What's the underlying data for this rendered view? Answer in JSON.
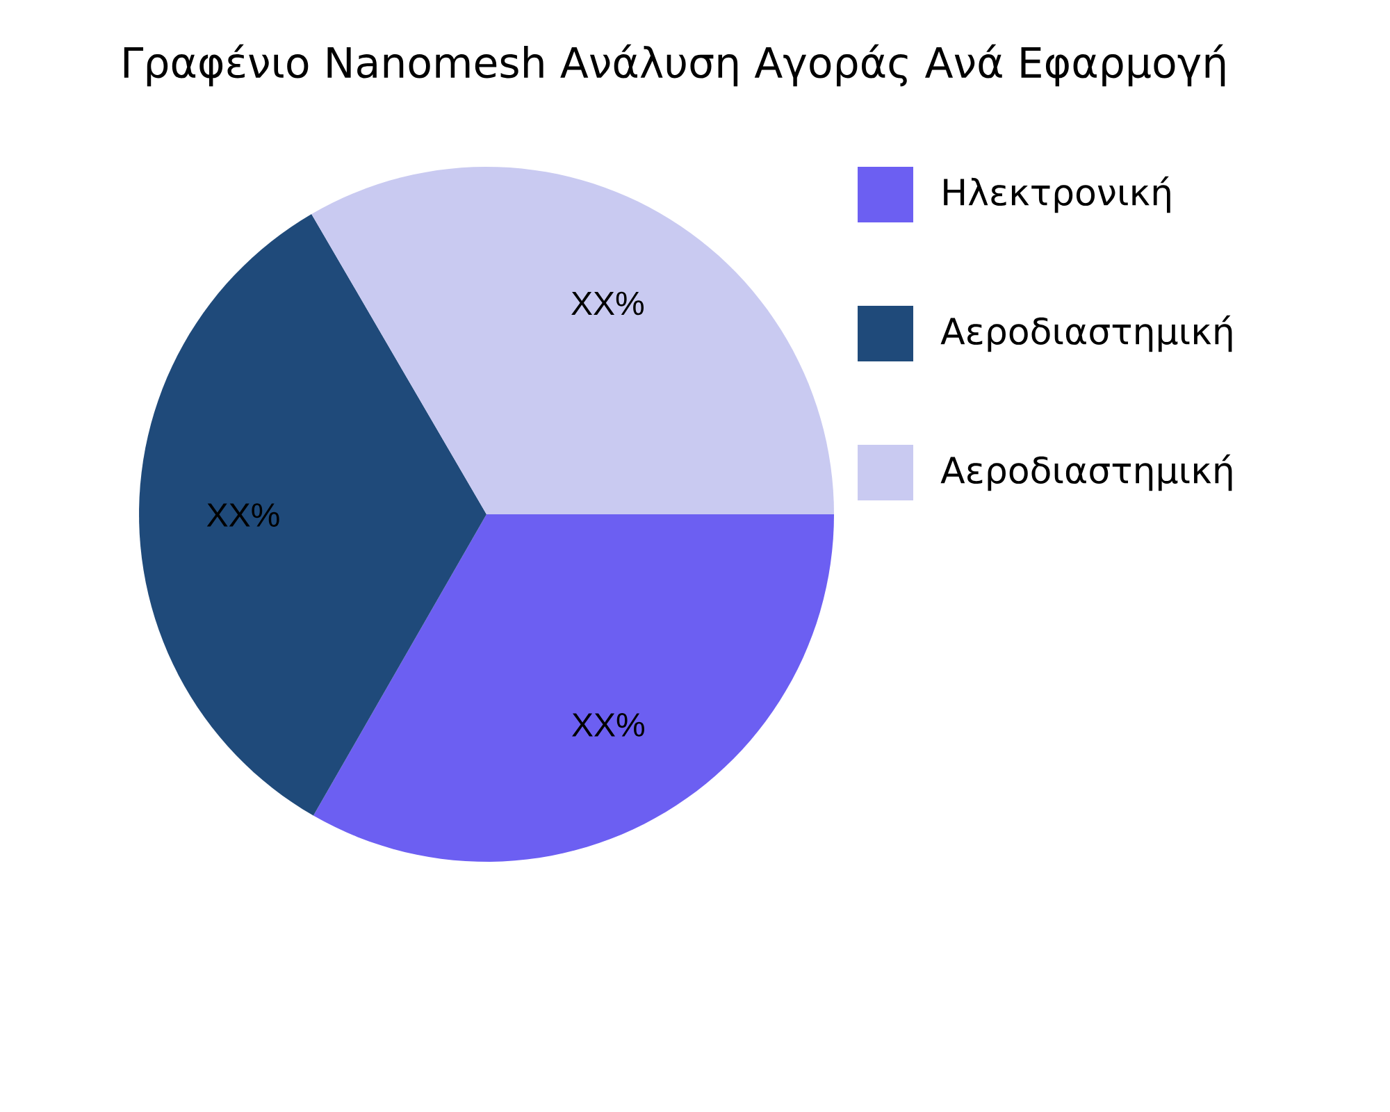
{
  "chart_data": {
    "type": "pie",
    "title": "Γραφένιο Nanomesh Ανάλυση Αγοράς Ανά Εφαρμογή",
    "categories": [
      "Ηλεκτρονική",
      "Αεροδιαστημική",
      "Αεροδιαστημική"
    ],
    "values": [
      33.3,
      33.3,
      33.4
    ],
    "colors": [
      "#6c5ff2",
      "#1f4a7a",
      "#c9caf1"
    ],
    "value_labels": [
      "XX%",
      "XX%",
      "XX%"
    ],
    "legend": "top right"
  }
}
